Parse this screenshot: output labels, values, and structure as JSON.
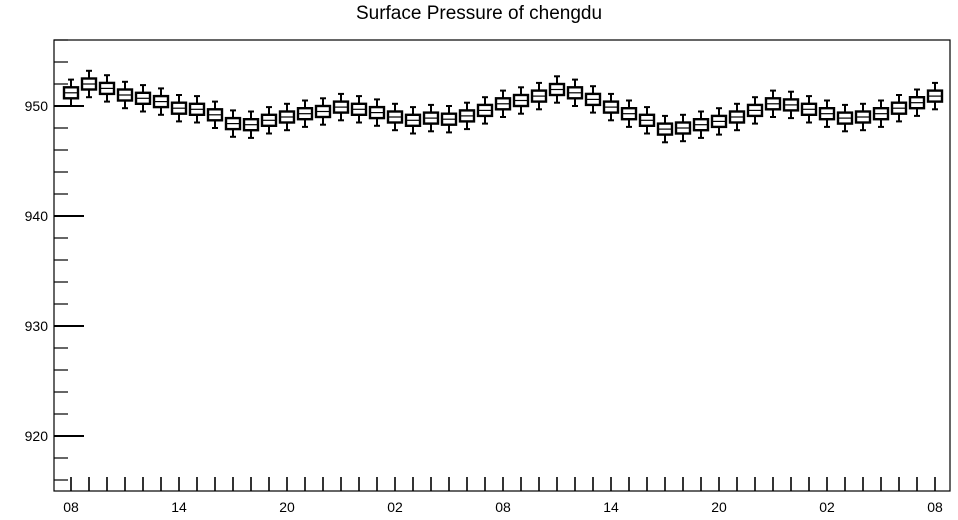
{
  "chart_data": {
    "type": "boxplot",
    "title": "Surface Pressure of chengdu",
    "xlabel": "",
    "ylabel": "",
    "ylim": [
      915,
      956
    ],
    "y_ticks": [
      920,
      930,
      940,
      950
    ],
    "x_tick_labels": [
      "08",
      "14",
      "20",
      "02",
      "08",
      "14",
      "20",
      "02",
      "08"
    ],
    "grid": false,
    "medians": [
      951.2,
      952.0,
      951.6,
      951.0,
      950.7,
      950.4,
      949.8,
      949.7,
      949.2,
      948.4,
      948.3,
      948.7,
      949.0,
      949.3,
      949.5,
      949.9,
      949.7,
      949.4,
      949.0,
      948.7,
      948.9,
      948.8,
      949.1,
      949.6,
      950.2,
      950.5,
      950.9,
      951.5,
      951.2,
      950.6,
      949.9,
      949.3,
      948.7,
      947.9,
      948.0,
      948.3,
      948.6,
      949.0,
      949.6,
      950.2,
      950.1,
      949.7,
      949.3,
      948.9,
      949.0,
      949.3,
      949.8,
      950.3,
      950.9
    ],
    "box_half_range": 0.5,
    "whisker_half_range": 1.2,
    "colors": {
      "box_fill": "#ffffff",
      "stroke": "#000000"
    }
  }
}
